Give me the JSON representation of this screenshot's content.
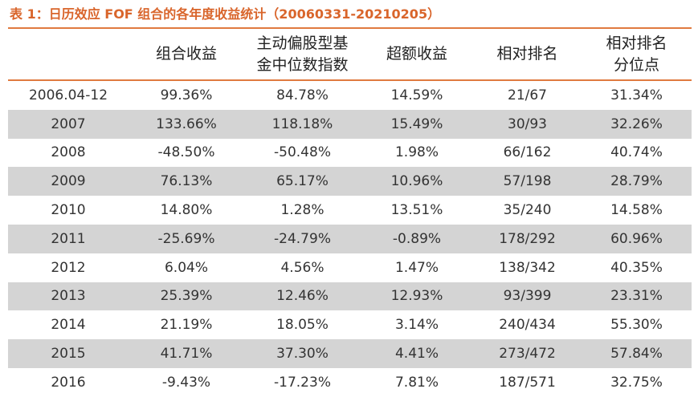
{
  "title": "表 1：日历效应 FOF 组合的各年度收益统计（20060331-20210205）",
  "colors": {
    "accent": "#e07a3f",
    "title": "#d9652b",
    "row_shade": "#d4d4d4"
  },
  "table": {
    "headers": [
      "",
      "组合收益",
      "主动偏股型基金中位数指数",
      "超额收益",
      "相对排名",
      "相对排名分位点"
    ],
    "header_lines": [
      [
        ""
      ],
      [
        "组合收益"
      ],
      [
        "主动偏股型基",
        "金中位数指数"
      ],
      [
        "超额收益"
      ],
      [
        "相对排名"
      ],
      [
        "相对排名",
        "分位点"
      ]
    ],
    "rows": [
      [
        "2006.04-12",
        "99.36%",
        "84.78%",
        "14.59%",
        "21/67",
        "31.34%"
      ],
      [
        "2007",
        "133.66%",
        "118.18%",
        "15.49%",
        "30/93",
        "32.26%"
      ],
      [
        "2008",
        "-48.50%",
        "-50.48%",
        "1.98%",
        "66/162",
        "40.74%"
      ],
      [
        "2009",
        "76.13%",
        "65.17%",
        "10.96%",
        "57/198",
        "28.79%"
      ],
      [
        "2010",
        "14.80%",
        "1.28%",
        "13.51%",
        "35/240",
        "14.58%"
      ],
      [
        "2011",
        "-25.69%",
        "-24.79%",
        "-0.89%",
        "178/292",
        "60.96%"
      ],
      [
        "2012",
        "6.04%",
        "4.56%",
        "1.47%",
        "138/342",
        "40.35%"
      ],
      [
        "2013",
        "25.39%",
        "12.46%",
        "12.93%",
        "93/399",
        "23.31%"
      ],
      [
        "2014",
        "21.19%",
        "18.05%",
        "3.14%",
        "240/434",
        "55.30%"
      ],
      [
        "2015",
        "41.71%",
        "37.30%",
        "4.41%",
        "273/472",
        "57.84%"
      ],
      [
        "2016",
        "-9.43%",
        "-17.23%",
        "7.81%",
        "187/571",
        "32.75%"
      ]
    ]
  }
}
